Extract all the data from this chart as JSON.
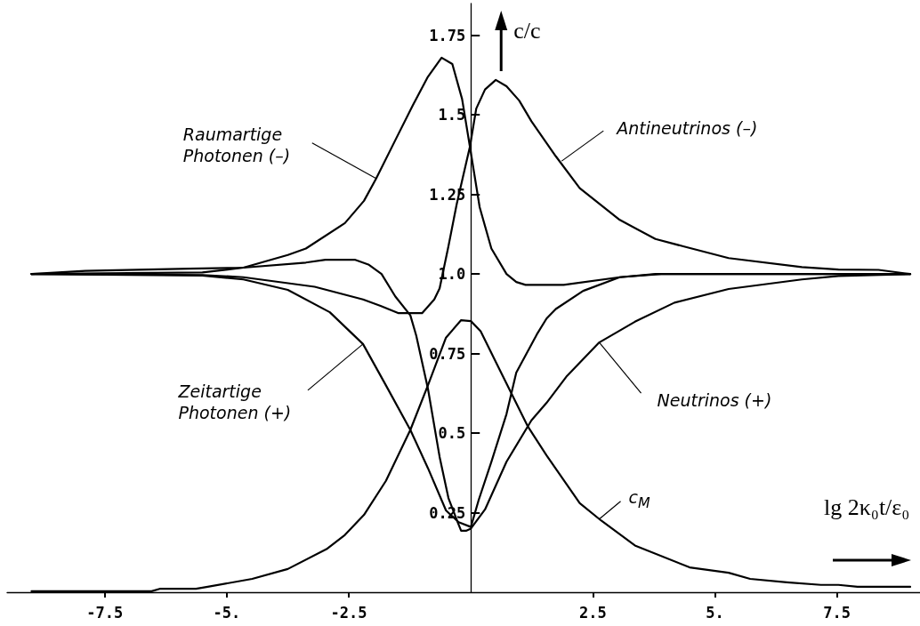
{
  "chart_data": {
    "type": "line",
    "xlabel": "lg 2κ₀t/ε₀",
    "ylabel": "c/c",
    "xlim": [
      -9.5,
      9.2
    ],
    "xticks": [
      -7.5,
      {
        "value": -5,
        "label": "-5."
      },
      -2.5,
      2.5,
      {
        "value": 5,
        "label": "5."
      },
      7.5
    ],
    "ylim": [
      0,
      1.85
    ],
    "yticks": [
      0.25,
      0.5,
      0.75,
      {
        "value": 1,
        "label": "1.0"
      },
      1.25,
      1.5,
      1.75
    ],
    "grid": false,
    "marker": "none",
    "line_style": "solid",
    "series": [
      {
        "color": "#000000",
        "x": [
          -9,
          -7.9,
          -5.76,
          -4.66,
          -3.75,
          -3.38,
          -2.58,
          -2.19,
          -1.94,
          -1.55,
          -1.19,
          -0.88,
          -0.6,
          -0.38,
          -0.18,
          -0.02,
          0.18,
          0.42,
          0.73,
          0.93,
          1.12,
          1.9,
          3.05,
          3.9,
          9
        ],
        "values": [
          1,
          1.01,
          1.017,
          1.02,
          1.06,
          1.08,
          1.16,
          1.23,
          1.3,
          1.42,
          1.53,
          1.62,
          1.68,
          1.66,
          1.55,
          1.4,
          1.21,
          1.08,
          1,
          0.975,
          0.966,
          0.966,
          0.99,
          1,
          1
        ]
      },
      {
        "color": "#000000",
        "x": [
          -9,
          -5.5,
          -4.66,
          -3.2,
          -2.21,
          -1.85,
          -1.48,
          -1.0,
          -0.75,
          -0.64,
          -0.46,
          -0.29,
          -0.17,
          -0.02,
          0.11,
          0.29,
          0.51,
          0.73,
          0.99,
          1.24,
          1.74,
          2.23,
          3.05,
          3.78,
          4.35,
          5.28,
          6.78,
          7.53,
          8.35,
          9
        ],
        "values": [
          1,
          0.997,
          0.99,
          0.96,
          0.92,
          0.9,
          0.877,
          0.877,
          0.92,
          0.955,
          1.087,
          1.22,
          1.3,
          1.4,
          1.52,
          1.58,
          1.61,
          1.59,
          1.545,
          1.48,
          1.37,
          1.27,
          1.17,
          1.11,
          1.087,
          1.05,
          1.022,
          1.014,
          1.013,
          1
        ]
      },
      {
        "color": "#000000",
        "x": [
          -9,
          -5.5,
          -4.66,
          -3.75,
          -2.89,
          -2.21,
          -1.74,
          -1.24,
          -0.88,
          -0.51,
          -0.25,
          0,
          0.16,
          0.42,
          0.73,
          0.93,
          1.35,
          1.55,
          1.74,
          2.3,
          3.05,
          3.78,
          9
        ],
        "values": [
          1,
          0.995,
          0.983,
          0.95,
          0.88,
          0.78,
          0.65,
          0.51,
          0.39,
          0.257,
          0.22,
          0.205,
          0.29,
          0.41,
          0.56,
          0.69,
          0.81,
          0.86,
          0.89,
          0.947,
          0.99,
          1,
          1
        ]
      },
      {
        "color": "#000000",
        "x": [
          -9,
          -5.5,
          -4.66,
          -3.38,
          -2.98,
          -2.38,
          -2.1,
          -1.83,
          -1.55,
          -1.24,
          -1.12,
          -0.88,
          -0.64,
          -0.46,
          -0.27,
          -0.2,
          -0.1,
          0,
          0.29,
          0.73,
          1.24,
          1.55,
          1.97,
          2.63,
          3.36,
          4.17,
          5.28,
          6.78,
          7.53,
          9
        ],
        "values": [
          1,
          1.005,
          1.02,
          1.036,
          1.045,
          1.045,
          1.03,
          1,
          0.93,
          0.87,
          0.807,
          0.64,
          0.425,
          0.296,
          0.22,
          0.193,
          0.193,
          0.2,
          0.26,
          0.41,
          0.54,
          0.595,
          0.68,
          0.785,
          0.85,
          0.91,
          0.953,
          0.983,
          0.994,
          1
        ]
      },
      {
        "color": "#000000",
        "x": [
          -9,
          -6.54,
          -6.36,
          -5.63,
          -5.39,
          -4.48,
          -3.75,
          -2.94,
          -2.58,
          -2.19,
          -1.74,
          -1.24,
          -0.88,
          -0.51,
          -0.2,
          0,
          0.2,
          0.49,
          1.17,
          1.55,
          2.23,
          2.67,
          3.36,
          4.48,
          5.28,
          5.72,
          6.47,
          7.17,
          7.53,
          7.92,
          9
        ],
        "values": [
          0.003,
          0.003,
          0.011,
          0.011,
          0.017,
          0.042,
          0.073,
          0.137,
          0.18,
          0.243,
          0.35,
          0.51,
          0.65,
          0.8,
          0.855,
          0.852,
          0.82,
          0.73,
          0.52,
          0.43,
          0.28,
          0.225,
          0.147,
          0.078,
          0.061,
          0.042,
          0.031,
          0.023,
          0.023,
          0.017,
          0.017
        ]
      }
    ],
    "annotations": [
      {
        "text": "Raumartige\nPhotonen (–)",
        "x": -1.94,
        "y": 1.3
      },
      {
        "text": "Antineutrinos (–)",
        "x": 1.86,
        "y": 1.355
      },
      {
        "text": "Zeitartige\nPhotonen (+)",
        "x": -2.21,
        "y": 0.78
      },
      {
        "text": "Neutrinos (+)",
        "x": 2.63,
        "y": 0.785
      },
      {
        "text": "c$_{M}$",
        "x": 2.63,
        "y": 0.23
      }
    ]
  }
}
